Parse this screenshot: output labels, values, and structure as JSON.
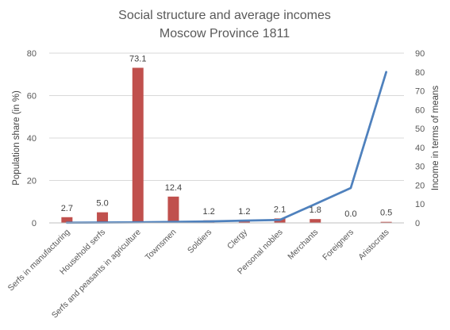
{
  "chart_data": {
    "type": "bar",
    "title_lines": [
      "Social structure and average incomes",
      "Moscow Province 1811"
    ],
    "categories": [
      "Serfs in manufacturing",
      "Household serfs",
      "Serfs and peasants in agriculture",
      "Townsmen",
      "Soldiers",
      "Clergy",
      "Personal nobles",
      "Merchants",
      "Foreigners",
      "Aristocrats"
    ],
    "ylabel_left": "Population share (in %)",
    "ylabel_right": "Income in terms of means",
    "ylim_left": [
      0,
      80
    ],
    "yticks_left": [
      0,
      20,
      40,
      60,
      80
    ],
    "ylim_right": [
      0,
      90
    ],
    "yticks_right": [
      0,
      10,
      20,
      30,
      40,
      50,
      60,
      70,
      80,
      90
    ],
    "grid": "horizontal",
    "legend": "none",
    "series": [
      {
        "type": "bar",
        "axis": "left",
        "color": "#c0504d",
        "values": [
          2.7,
          5.0,
          73.1,
          12.4,
          1.2,
          1.2,
          2.1,
          1.8,
          0.0,
          0.5
        ],
        "labels": [
          "2.7",
          "5.0",
          "73.1",
          "12.4",
          "1.2",
          "1.2",
          "2.1",
          "1.8",
          "0.0",
          "0.5"
        ]
      },
      {
        "type": "line",
        "axis": "right",
        "color": "#4f81bd",
        "values": [
          0.1,
          0.2,
          0.3,
          0.5,
          0.8,
          1.2,
          1.6,
          10.0,
          18.5,
          80.0
        ]
      }
    ]
  }
}
